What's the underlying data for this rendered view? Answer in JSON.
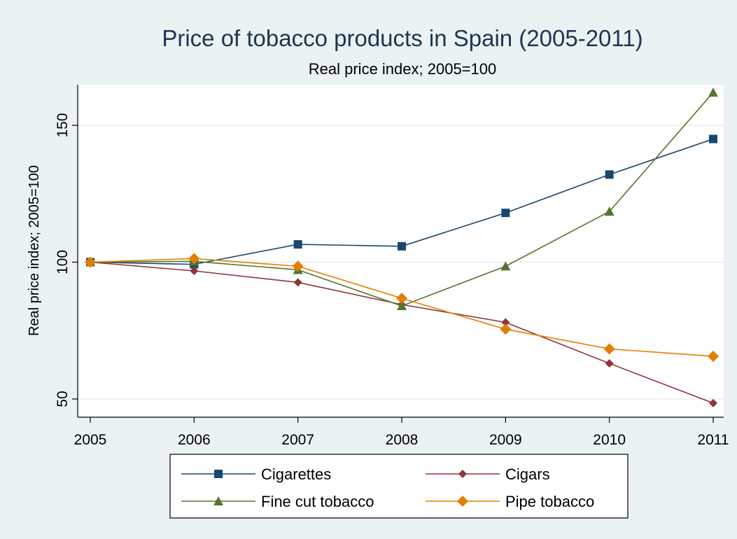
{
  "chart_data": {
    "type": "line",
    "title": "Price of tobacco products in Spain (2005-2011)",
    "subtitle": "Real price index; 2005=100",
    "xlabel": "",
    "ylabel": "Real price index; 2005=100",
    "x": [
      2005,
      2006,
      2007,
      2008,
      2009,
      2010,
      2011
    ],
    "x_ticks": [
      "2005",
      "2006",
      "2007",
      "2008",
      "2009",
      "2010",
      "2011"
    ],
    "y_ticks": [
      "50",
      "100",
      "150"
    ],
    "xlim": [
      2005,
      2011
    ],
    "ylim": [
      45,
      165
    ],
    "grid": "horizontal",
    "legend_position": "bottom",
    "series": [
      {
        "name": "Cigarettes",
        "color": "#1a476f",
        "marker": "square",
        "values": [
          100,
          99.2,
          106.5,
          105.8,
          118,
          132,
          145
        ]
      },
      {
        "name": "Cigars",
        "color": "#90353b",
        "marker": "diamond-small",
        "values": [
          100,
          96.8,
          92.6,
          84.5,
          78,
          63,
          48.5
        ]
      },
      {
        "name": "Fine cut tobacco",
        "color": "#55752f",
        "marker": "triangle",
        "values": [
          100,
          100.3,
          97.2,
          84,
          98.5,
          118.5,
          162
        ]
      },
      {
        "name": "Pipe tobacco",
        "color": "#e37e00",
        "marker": "diamond",
        "values": [
          100,
          101.3,
          98.5,
          86.8,
          75.5,
          68.3,
          65.6
        ]
      }
    ]
  }
}
